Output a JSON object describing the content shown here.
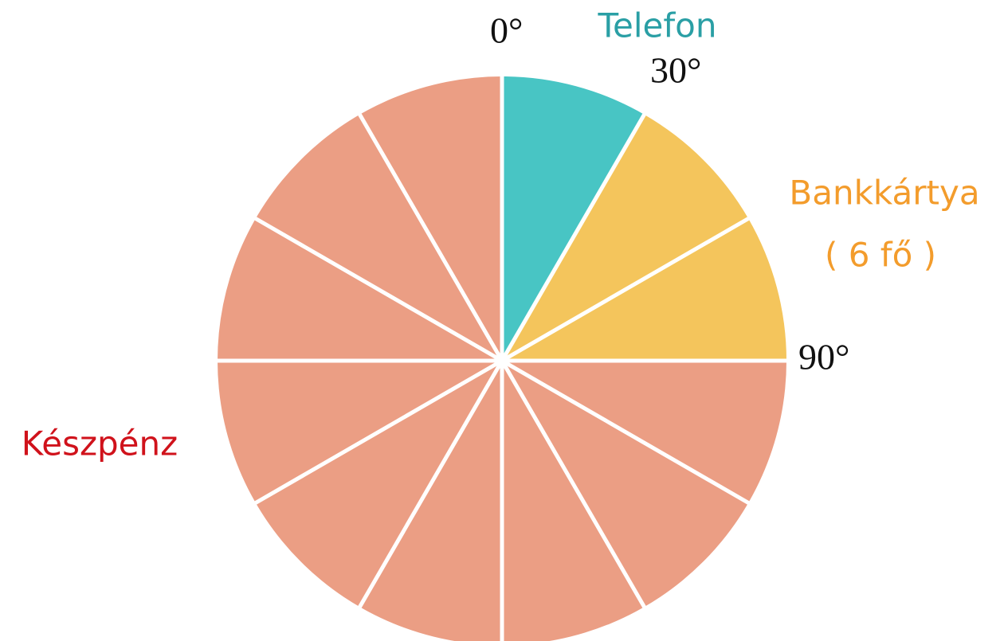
{
  "chart_data": {
    "type": "pie",
    "categories": [
      "Telefon",
      "Bankkártya",
      "Készpénz"
    ],
    "values": [
      3,
      6,
      27
    ],
    "value_labels": [
      null,
      "( 6 fő )",
      null
    ],
    "colors": [
      "#48c5c4",
      "#f4c55c",
      "#eb9e84"
    ],
    "label_colors": [
      "#2a9fa5",
      "#f39c2c",
      "#d0121b"
    ],
    "divisions": 12,
    "angle_ticks": [
      {
        "value": 0,
        "label": "0°"
      },
      {
        "value": 30,
        "label": "30°"
      },
      {
        "value": 90,
        "label": "90°"
      }
    ]
  }
}
